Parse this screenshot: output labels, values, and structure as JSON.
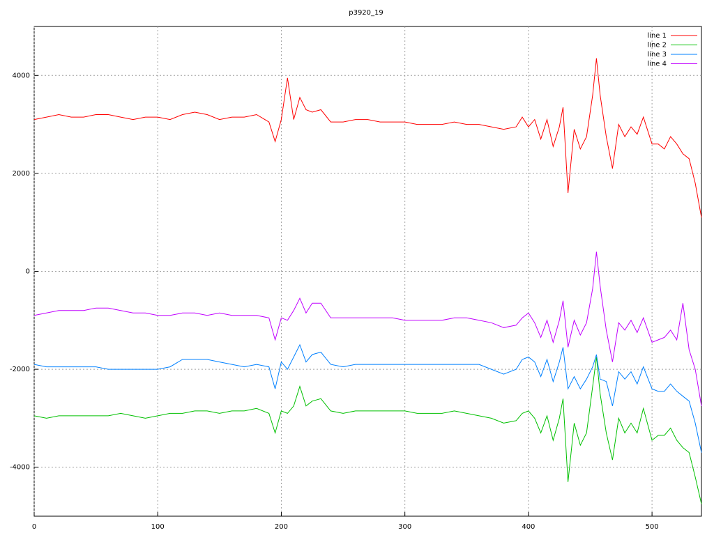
{
  "chart_data": {
    "type": "line",
    "title": "p3920_19",
    "x": [
      0,
      10,
      20,
      30,
      40,
      50,
      60,
      70,
      80,
      90,
      100,
      110,
      120,
      130,
      140,
      150,
      160,
      170,
      180,
      190,
      195,
      200,
      205,
      210,
      215,
      220,
      225,
      232,
      240,
      250,
      260,
      270,
      280,
      290,
      300,
      310,
      320,
      330,
      340,
      350,
      360,
      370,
      380,
      390,
      395,
      400,
      405,
      410,
      415,
      420,
      425,
      428,
      432,
      437,
      442,
      447,
      452,
      455,
      458,
      463,
      468,
      473,
      478,
      483,
      488,
      493,
      500,
      505,
      510,
      515,
      520,
      525,
      530,
      535,
      540
    ],
    "series": [
      {
        "name": "line 1",
        "color": "#ff0000",
        "values": [
          3100,
          3150,
          3200,
          3150,
          3150,
          3200,
          3200,
          3150,
          3100,
          3150,
          3150,
          3100,
          3200,
          3250,
          3200,
          3100,
          3150,
          3150,
          3200,
          3050,
          2650,
          3100,
          3950,
          3100,
          3550,
          3300,
          3250,
          3300,
          3050,
          3050,
          3100,
          3100,
          3050,
          3050,
          3050,
          3000,
          3000,
          3000,
          3050,
          3000,
          3000,
          2950,
          2900,
          2950,
          3150,
          2950,
          3100,
          2700,
          3100,
          2550,
          2950,
          3350,
          1600,
          2900,
          2500,
          2750,
          3600,
          4350,
          3600,
          2750,
          2100,
          3000,
          2750,
          2950,
          2800,
          3150,
          2600,
          2600,
          2500,
          2750,
          2600,
          2400,
          2300,
          1800,
          1100
        ]
      },
      {
        "name": "line 2",
        "color": "#00c000",
        "values": [
          -2950,
          -3000,
          -2950,
          -2950,
          -2950,
          -2950,
          -2950,
          -2900,
          -2950,
          -3000,
          -2950,
          -2900,
          -2900,
          -2850,
          -2850,
          -2900,
          -2850,
          -2850,
          -2800,
          -2900,
          -3300,
          -2850,
          -2900,
          -2750,
          -2350,
          -2750,
          -2650,
          -2600,
          -2850,
          -2900,
          -2850,
          -2850,
          -2850,
          -2850,
          -2850,
          -2900,
          -2900,
          -2900,
          -2850,
          -2900,
          -2950,
          -3000,
          -3100,
          -3050,
          -2900,
          -2850,
          -3000,
          -3300,
          -2950,
          -3450,
          -3000,
          -2600,
          -4300,
          -3100,
          -3550,
          -3300,
          -2350,
          -1750,
          -2500,
          -3300,
          -3850,
          -3000,
          -3300,
          -3100,
          -3300,
          -2800,
          -3450,
          -3350,
          -3350,
          -3200,
          -3450,
          -3600,
          -3700,
          -4200,
          -4750
        ]
      },
      {
        "name": "line 3",
        "color": "#0080ff",
        "values": [
          -1900,
          -1950,
          -1950,
          -1950,
          -1950,
          -1950,
          -2000,
          -2000,
          -2000,
          -2000,
          -2000,
          -1950,
          -1800,
          -1800,
          -1800,
          -1850,
          -1900,
          -1950,
          -1900,
          -1950,
          -2400,
          -1850,
          -2000,
          -1750,
          -1500,
          -1850,
          -1700,
          -1650,
          -1900,
          -1950,
          -1900,
          -1900,
          -1900,
          -1900,
          -1900,
          -1900,
          -1900,
          -1900,
          -1900,
          -1900,
          -1900,
          -2000,
          -2100,
          -2000,
          -1800,
          -1750,
          -1850,
          -2150,
          -1800,
          -2250,
          -1850,
          -1550,
          -2400,
          -2150,
          -2400,
          -2200,
          -1950,
          -1700,
          -2200,
          -2250,
          -2750,
          -2050,
          -2200,
          -2050,
          -2300,
          -1950,
          -2400,
          -2450,
          -2450,
          -2300,
          -2450,
          -2550,
          -2650,
          -3100,
          -3700
        ]
      },
      {
        "name": "line 4",
        "color": "#c000ff",
        "values": [
          -900,
          -850,
          -800,
          -800,
          -800,
          -750,
          -750,
          -800,
          -850,
          -850,
          -900,
          -900,
          -850,
          -850,
          -900,
          -850,
          -900,
          -900,
          -900,
          -950,
          -1400,
          -950,
          -1000,
          -800,
          -550,
          -850,
          -650,
          -650,
          -950,
          -950,
          -950,
          -950,
          -950,
          -950,
          -1000,
          -1000,
          -1000,
          -1000,
          -950,
          -950,
          -1000,
          -1050,
          -1150,
          -1100,
          -950,
          -850,
          -1050,
          -1350,
          -1000,
          -1450,
          -1000,
          -600,
          -1550,
          -1000,
          -1300,
          -1050,
          -350,
          400,
          -300,
          -1200,
          -1850,
          -1050,
          -1200,
          -1000,
          -1250,
          -950,
          -1450,
          -1400,
          -1350,
          -1200,
          -1400,
          -650,
          -1600,
          -2000,
          -2750
        ]
      }
    ],
    "xlim": [
      0,
      540
    ],
    "xticks": [
      0,
      100,
      200,
      300,
      400,
      500
    ],
    "ylim": [
      -5000,
      5000
    ],
    "yticks": [
      -4000,
      -2000,
      0,
      2000,
      4000
    ],
    "grid": true,
    "legend": "top-right"
  }
}
